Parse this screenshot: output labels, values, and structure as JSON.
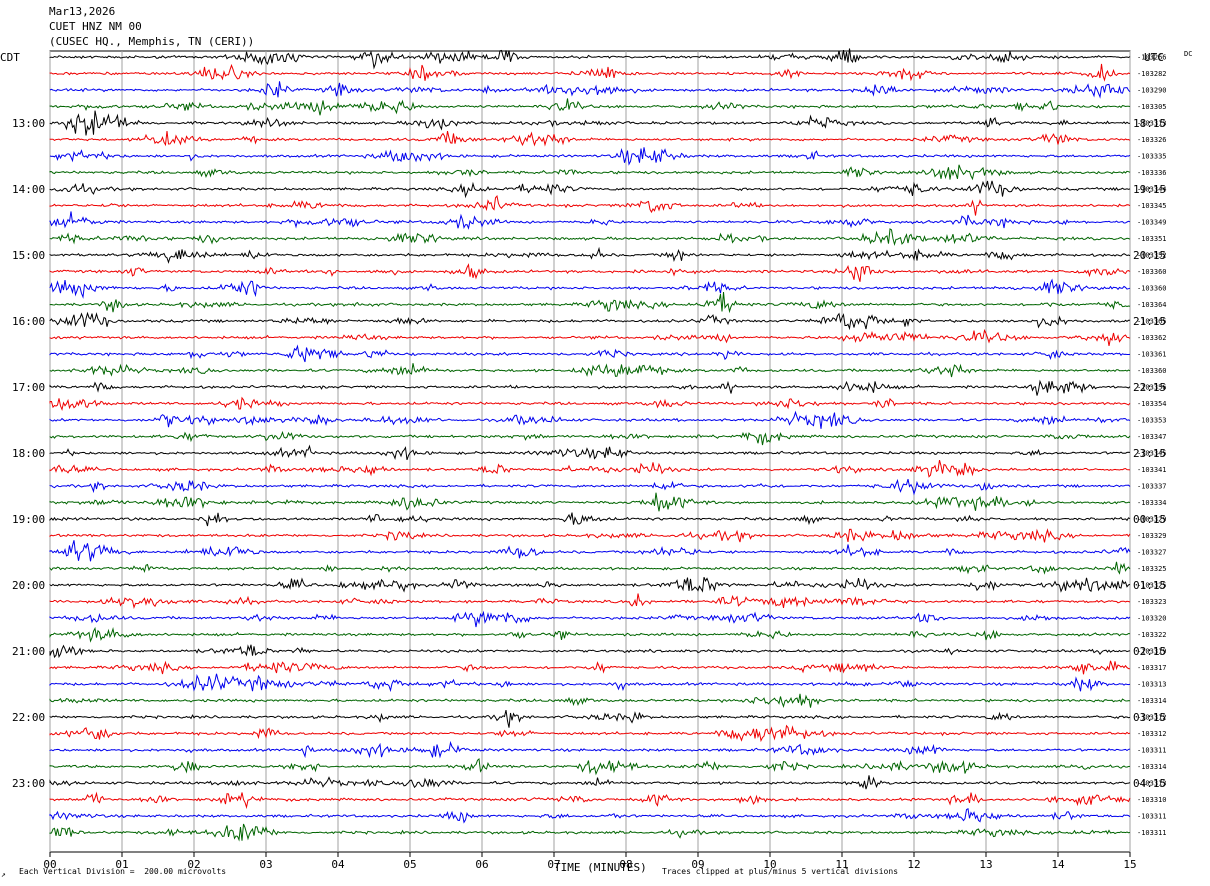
{
  "header": {
    "date": "Mar13,2026",
    "channel": "CUET HNZ NM 00",
    "location": "(CUSEC HQ., Memphis, TN (CERI))"
  },
  "left_timezone": "CDT",
  "right_timezone": "UTC",
  "right_top_label": "DC",
  "footer": {
    "scale_note": "Each Vertical Division =  200.00 microvolts",
    "clip_note": "Traces clipped at plus/minus 5 vertical divisions",
    "corner_mark": "↗"
  },
  "colors": {
    "cycle": [
      "#000000",
      "#ee0000",
      "#0000ee",
      "#006400"
    ],
    "grid": "#a0a0a0"
  },
  "chart_data": {
    "type": "line",
    "title": "",
    "xlabel": "TIME (MINUTES)",
    "x_ticks": [
      "00",
      "01",
      "02",
      "03",
      "04",
      "05",
      "06",
      "07",
      "08",
      "09",
      "10",
      "11",
      "12",
      "13",
      "14",
      "15"
    ],
    "xlim": [
      0,
      15
    ],
    "left_hour_labels": [
      "13:00",
      "14:00",
      "15:00",
      "16:00",
      "17:00",
      "18:00",
      "19:00",
      "20:00",
      "21:00",
      "22:00",
      "23:00"
    ],
    "right_hour_labels": [
      "18:15",
      "19:15",
      "20:15",
      "21:15",
      "22:15",
      "23:15",
      "00:15",
      "01:15",
      "02:15",
      "03:15",
      "04:15"
    ],
    "hour_label_first_trace": 4,
    "traces_per_hour": 4,
    "trace_dc_offsets": [
      "103266",
      "103282",
      "103290",
      "103305",
      "103313",
      "103326",
      "103335",
      "103336",
      "103344",
      "103345",
      "103349",
      "103351",
      "103352",
      "103360",
      "103360",
      "103364",
      "103365",
      "103362",
      "103361",
      "103360",
      "103356",
      "103354",
      "103353",
      "103347",
      "103345",
      "103341",
      "103337",
      "103334",
      "103329",
      "103329",
      "103327",
      "103325",
      "103325",
      "103323",
      "103320",
      "103322",
      "103319",
      "103317",
      "103313",
      "103314",
      "103312",
      "103312",
      "103311",
      "103314",
      "103313",
      "103310",
      "103311",
      "103311"
    ],
    "trace_duration_minutes": 15,
    "grid": true
  }
}
